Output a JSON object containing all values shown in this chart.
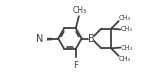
{
  "bg_color": "#ffffff",
  "bond_color": "#404040",
  "line_width": 1.3,
  "figsize": [
    1.55,
    0.77
  ],
  "dpi": 100,
  "xlim": [
    -0.22,
    1.18
  ],
  "ylim": [
    0.0,
    1.0
  ]
}
